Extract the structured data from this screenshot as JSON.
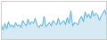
{
  "chart_data": {
    "type": "area",
    "values": [
      5.5,
      4.2,
      5.8,
      4.5,
      6.2,
      5.0,
      5.5,
      4.8,
      6.0,
      5.2,
      5.5,
      4.8,
      6.5,
      5.8,
      5.2,
      6.8,
      5.5,
      6.2,
      5.8,
      7.0,
      5.5,
      4.8,
      5.5,
      5.2,
      7.5,
      5.0,
      5.5,
      6.0,
      5.2,
      6.5,
      5.8,
      5.5,
      7.0,
      5.5,
      6.0,
      6.5,
      5.5,
      7.2,
      5.8,
      8.8,
      5.2,
      6.0,
      5.8,
      5.5,
      6.8,
      7.5,
      6.2,
      8.5,
      7.2,
      8.0,
      7.0,
      8.8,
      7.5,
      8.2,
      7.8,
      6.5,
      7.5,
      8.2,
      9.0,
      7.5
    ],
    "color": "#5BACD4",
    "xlim": [
      0,
      59
    ],
    "ylim": [
      2.0,
      11.0
    ],
    "tick_labels": false,
    "grid": false
  }
}
